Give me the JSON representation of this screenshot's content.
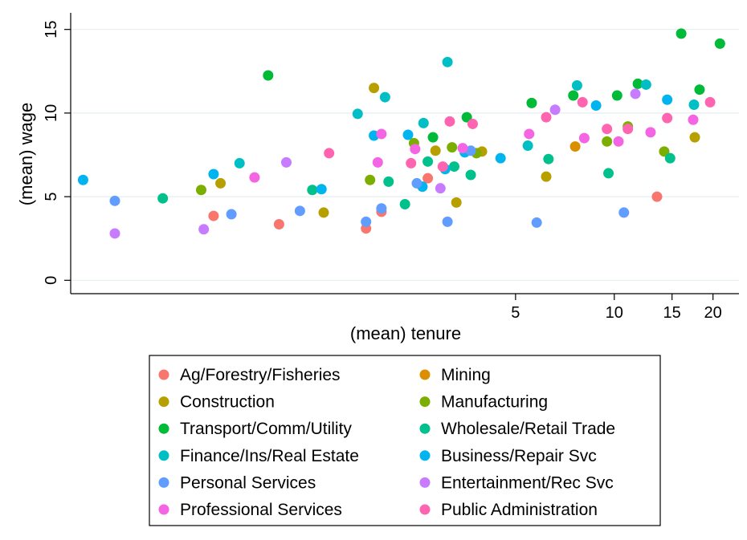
{
  "chart_data": {
    "type": "scatter",
    "xlabel": "(mean) tenure",
    "ylabel": "(mean) wage",
    "x_scale": "log",
    "xlim": [
      0.22,
      24
    ],
    "ylim": [
      -0.8,
      15.8
    ],
    "x_ticks": [
      5,
      10,
      15,
      20
    ],
    "y_ticks": [
      0,
      5,
      10,
      15
    ],
    "grid": "horizontal",
    "legend_position": "bottom",
    "series": [
      {
        "name": "Ag/Forestry/Fisheries",
        "color": "#F8766D",
        "points": [
          [
            0.6,
            3.85
          ],
          [
            0.95,
            3.35
          ],
          [
            1.75,
            3.1
          ],
          [
            1.95,
            4.1
          ],
          [
            2.7,
            6.1
          ],
          [
            13.5,
            5.0
          ]
        ]
      },
      {
        "name": "Mining",
        "color": "#DB8E00",
        "points": [
          [
            7.6,
            8.0
          ]
        ]
      },
      {
        "name": "Construction",
        "color": "#B79F00",
        "points": [
          [
            0.63,
            5.8
          ],
          [
            1.3,
            4.05
          ],
          [
            1.85,
            11.5
          ],
          [
            2.85,
            7.75
          ],
          [
            3.3,
            4.65
          ],
          [
            3.95,
            7.7
          ],
          [
            6.2,
            6.2
          ],
          [
            17.6,
            8.55
          ]
        ]
      },
      {
        "name": "Manufacturing",
        "color": "#7CAE00",
        "points": [
          [
            0.55,
            5.4
          ],
          [
            1.8,
            6.0
          ],
          [
            2.45,
            8.2
          ],
          [
            3.2,
            7.95
          ],
          [
            3.8,
            7.6
          ],
          [
            9.5,
            8.3
          ],
          [
            11.0,
            9.2
          ],
          [
            14.2,
            7.7
          ]
        ]
      },
      {
        "name": "Transport/Comm/Utility",
        "color": "#00BA38",
        "points": [
          [
            0.88,
            12.25
          ],
          [
            2.8,
            8.55
          ],
          [
            3.55,
            9.75
          ],
          [
            5.6,
            10.6
          ],
          [
            7.5,
            11.05
          ],
          [
            10.2,
            11.05
          ],
          [
            11.8,
            11.75
          ],
          [
            16.0,
            14.75
          ],
          [
            18.2,
            11.4
          ],
          [
            21.0,
            14.15
          ]
        ]
      },
      {
        "name": "Wholesale/Retail Trade",
        "color": "#00C08B",
        "points": [
          [
            0.42,
            4.9
          ],
          [
            1.2,
            5.4
          ],
          [
            2.05,
            5.9
          ],
          [
            2.3,
            4.55
          ],
          [
            2.7,
            7.1
          ],
          [
            3.25,
            6.8
          ],
          [
            3.65,
            6.3
          ],
          [
            6.3,
            7.25
          ],
          [
            9.6,
            6.4
          ],
          [
            14.8,
            7.3
          ]
        ]
      },
      {
        "name": "Finance/Ins/Real Estate",
        "color": "#00BFC4",
        "points": [
          [
            0.72,
            7.0
          ],
          [
            1.65,
            9.95
          ],
          [
            2.0,
            10.95
          ],
          [
            2.62,
            9.4
          ],
          [
            3.1,
            13.05
          ],
          [
            5.45,
            8.05
          ],
          [
            7.7,
            11.65
          ],
          [
            12.5,
            11.7
          ],
          [
            17.5,
            10.5
          ]
        ]
      },
      {
        "name": "Business/Repair Svc",
        "color": "#00B4F0",
        "points": [
          [
            0.24,
            6.0
          ],
          [
            0.6,
            6.35
          ],
          [
            1.28,
            5.45
          ],
          [
            1.85,
            8.65
          ],
          [
            2.35,
            8.7
          ],
          [
            2.6,
            5.6
          ],
          [
            3.05,
            6.65
          ],
          [
            3.5,
            7.65
          ],
          [
            4.5,
            7.3
          ],
          [
            8.8,
            10.45
          ],
          [
            14.5,
            10.8
          ]
        ]
      },
      {
        "name": "Personal Services",
        "color": "#619CFF",
        "points": [
          [
            0.3,
            4.75
          ],
          [
            0.68,
            3.95
          ],
          [
            1.1,
            4.15
          ],
          [
            1.75,
            3.5
          ],
          [
            1.95,
            4.3
          ],
          [
            2.5,
            5.8
          ],
          [
            3.1,
            3.5
          ],
          [
            3.65,
            7.75
          ],
          [
            5.8,
            3.45
          ],
          [
            10.7,
            4.05
          ]
        ]
      },
      {
        "name": "Entertainment/Rec Svc",
        "color": "#C77CFF",
        "points": [
          [
            0.3,
            2.8
          ],
          [
            0.56,
            3.05
          ],
          [
            1.0,
            7.05
          ],
          [
            2.95,
            5.5
          ],
          [
            6.6,
            10.2
          ],
          [
            11.6,
            11.15
          ]
        ]
      },
      {
        "name": "Professional Services",
        "color": "#F564E3",
        "points": [
          [
            0.8,
            6.15
          ],
          [
            1.9,
            7.05
          ],
          [
            1.95,
            8.75
          ],
          [
            2.47,
            7.85
          ],
          [
            3.45,
            7.9
          ],
          [
            5.5,
            8.75
          ],
          [
            8.1,
            8.5
          ],
          [
            10.3,
            8.3
          ],
          [
            12.9,
            8.85
          ],
          [
            17.4,
            9.6
          ]
        ]
      },
      {
        "name": "Public Administration",
        "color": "#FF64B0",
        "points": [
          [
            1.35,
            7.6
          ],
          [
            2.4,
            7.0
          ],
          [
            3.0,
            6.8
          ],
          [
            3.15,
            9.5
          ],
          [
            3.7,
            9.35
          ],
          [
            6.2,
            9.75
          ],
          [
            8.0,
            10.65
          ],
          [
            9.5,
            9.05
          ],
          [
            11.0,
            9.05
          ],
          [
            14.5,
            9.7
          ],
          [
            19.6,
            10.65
          ]
        ]
      }
    ]
  }
}
